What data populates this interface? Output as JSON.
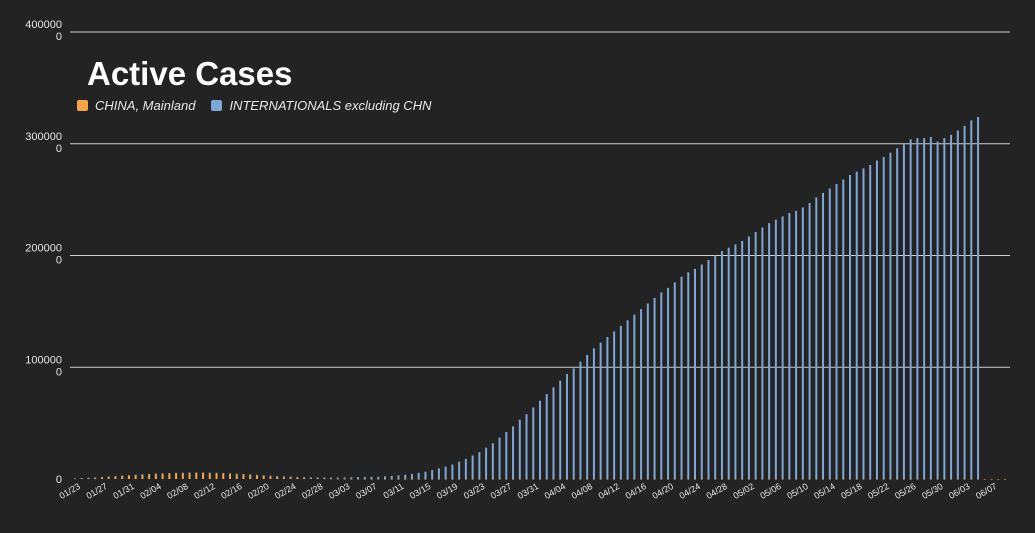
{
  "chart_data": {
    "type": "bar",
    "title": "Active Cases",
    "ylim": [
      0,
      400000
    ],
    "y_ticks": [
      {
        "value": 0,
        "label": "0"
      },
      {
        "value": 100000,
        "label": "100000 0"
      },
      {
        "value": 200000,
        "label": "200000 0"
      },
      {
        "value": 300000,
        "label": "300000 0"
      },
      {
        "value": 400000,
        "label": "400000 0"
      }
    ],
    "grid": true,
    "legend_position": "top-left",
    "colors": {
      "china": "#f6a54d",
      "international": "#7fa6d4",
      "grid": "#d0d0d0",
      "text": "#e6e6e6",
      "background": "#232323"
    },
    "tick_labels": [
      "01/23",
      "01/27",
      "01/31",
      "02/04",
      "02/08",
      "02/12",
      "02/16",
      "02/20",
      "02/24",
      "02/28",
      "03/03",
      "03/07",
      "03/11",
      "03/15",
      "03/19",
      "03/23",
      "03/27",
      "03/31",
      "04/04",
      "04/08",
      "04/12",
      "04/16",
      "04/20",
      "04/24",
      "04/28",
      "05/02",
      "05/06",
      "05/10",
      "05/14",
      "05/18",
      "05/22",
      "05/26",
      "05/30",
      "06/03",
      "06/07"
    ],
    "series": [
      {
        "name": "CHINA, Mainland",
        "values": [
          500,
          700,
          1000,
          1300,
          1600,
          2000,
          2400,
          2800,
          3200,
          3600,
          4000,
          4300,
          4600,
          4800,
          5000,
          5200,
          5300,
          5400,
          5400,
          5400,
          5300,
          5100,
          4900,
          4600,
          4300,
          4000,
          3600,
          3200,
          2800,
          2400,
          2000,
          1700,
          1400,
          1100,
          900,
          700,
          500,
          400,
          300,
          200,
          150,
          100,
          80,
          60,
          50,
          40,
          30,
          20,
          20,
          20,
          10,
          10,
          10,
          10,
          10,
          10,
          10,
          10,
          10,
          10,
          10,
          10,
          10,
          10,
          10,
          10,
          10,
          10,
          10,
          10,
          10,
          10,
          10,
          10,
          10,
          10,
          10,
          10,
          10,
          10,
          10,
          10,
          10,
          10,
          10,
          10,
          10,
          10,
          10,
          10,
          10,
          10,
          10,
          10,
          10,
          10,
          10,
          10,
          10,
          10,
          10,
          10,
          10,
          10,
          10,
          10,
          10,
          10,
          10,
          10,
          10,
          10,
          10,
          10,
          10,
          10,
          10,
          10,
          10,
          10,
          10,
          10,
          10,
          10,
          10,
          10,
          10,
          10,
          10,
          10,
          10,
          10,
          10,
          10,
          10,
          10,
          10,
          10,
          10
        ]
      },
      {
        "name": "INTERNATIONALS excluding CHN",
        "values": [
          20,
          30,
          40,
          60,
          80,
          100,
          120,
          140,
          160,
          180,
          200,
          220,
          240,
          260,
          280,
          300,
          320,
          340,
          360,
          380,
          400,
          420,
          440,
          460,
          480,
          500,
          520,
          540,
          560,
          580,
          600,
          650,
          700,
          750,
          800,
          850,
          900,
          950,
          1000,
          1100,
          1300,
          1500,
          1700,
          1800,
          1900,
          2000,
          2300,
          2700,
          3200,
          3800,
          4500,
          5500,
          6500,
          8000,
          9500,
          11000,
          13000,
          15500,
          18000,
          21000,
          24000,
          28000,
          32000,
          37000,
          42000,
          47000,
          53000,
          58000,
          64000,
          70000,
          76000,
          82000,
          88000,
          94000,
          99000,
          105000,
          111000,
          117000,
          122000,
          127000,
          132000,
          137000,
          142000,
          147000,
          152000,
          157000,
          162000,
          167000,
          171000,
          176000,
          181000,
          185000,
          188000,
          192000,
          196000,
          200000,
          204000,
          207000,
          210000,
          213000,
          217000,
          221000,
          225000,
          229000,
          232000,
          235000,
          238000,
          240000,
          243000,
          247000,
          252000,
          256000,
          260000,
          264000,
          268000,
          272000,
          275000,
          278000,
          281000,
          285000,
          288000,
          292000,
          296000,
          300000,
          304000,
          305000,
          305000,
          306000,
          302000,
          305000,
          308000,
          312000,
          316000,
          321000,
          324000
        ]
      }
    ]
  }
}
